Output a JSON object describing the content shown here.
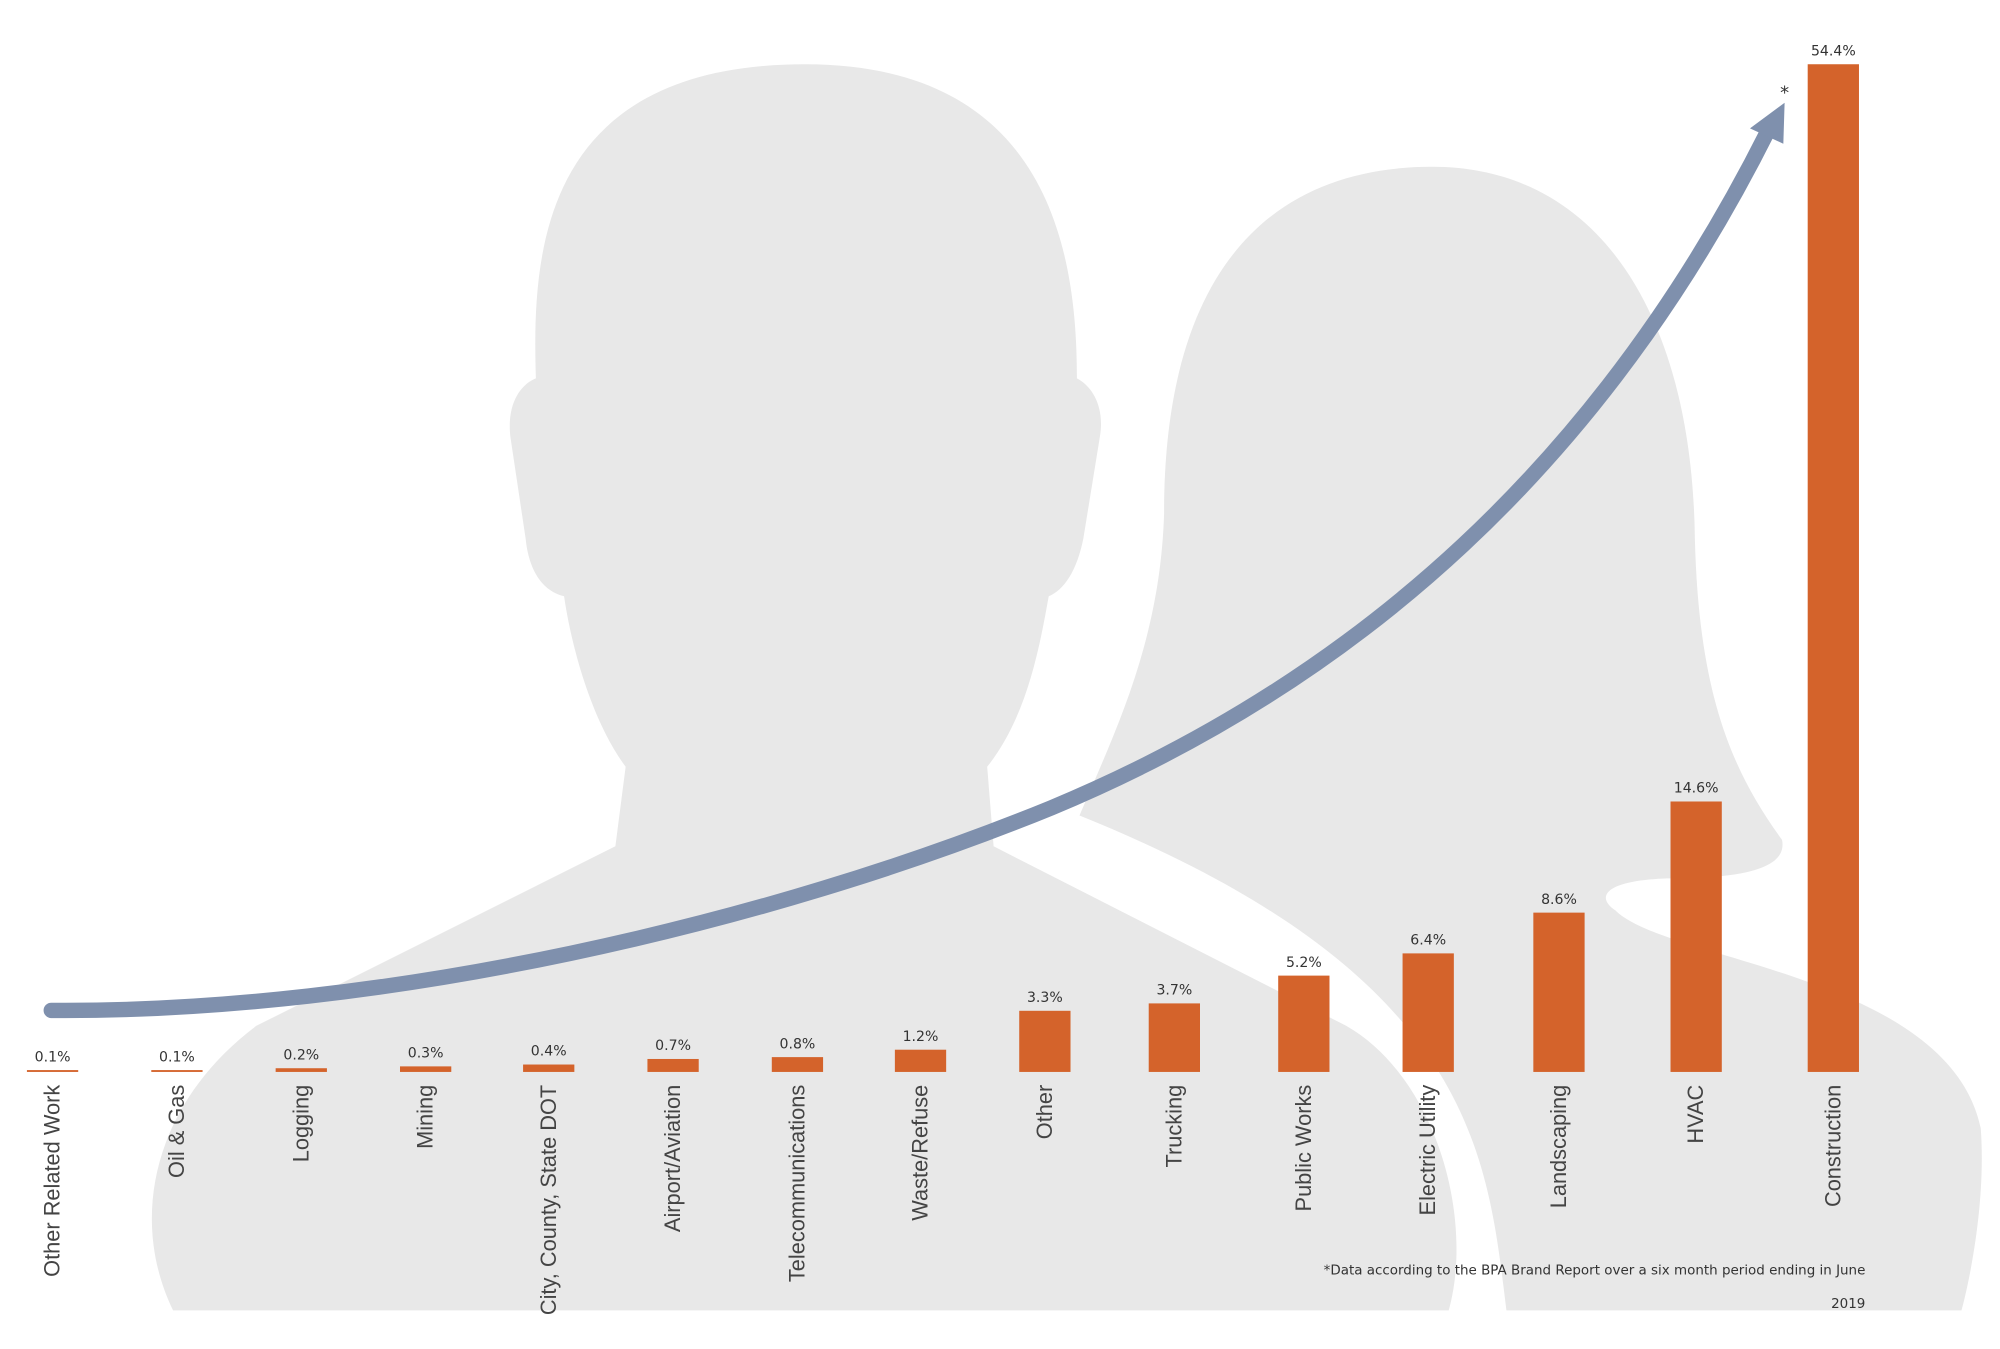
{
  "chart_data": {
    "type": "bar",
    "categories": [
      "Other Related Work",
      "Oil & Gas",
      "Logging",
      "Mining",
      "City, County, State DOT",
      "Airport/Aviation",
      "Telecommunications",
      "Waste/Refuse",
      "Other",
      "Trucking",
      "Public Works",
      "Electric Utility",
      "Landscaping",
      "HVAC",
      "Construction"
    ],
    "values": [
      0.1,
      0.1,
      0.2,
      0.3,
      0.4,
      0.7,
      0.8,
      1.2,
      3.3,
      3.7,
      5.2,
      6.4,
      8.6,
      14.6,
      54.4
    ],
    "value_labels": [
      "0.1%",
      "0.1%",
      "0.2%",
      "0.3%",
      "0.4%",
      "0.7%",
      "0.8%",
      "1.2%",
      "3.3%",
      "3.7%",
      "5.2%",
      "6.4%",
      "8.6%",
      "14.6%",
      "54.4%"
    ],
    "color": "#d4632b",
    "annotations": [
      "*",
      "*Data according to the BPA Brand Report over a six month period ending in June",
      "2019"
    ]
  }
}
